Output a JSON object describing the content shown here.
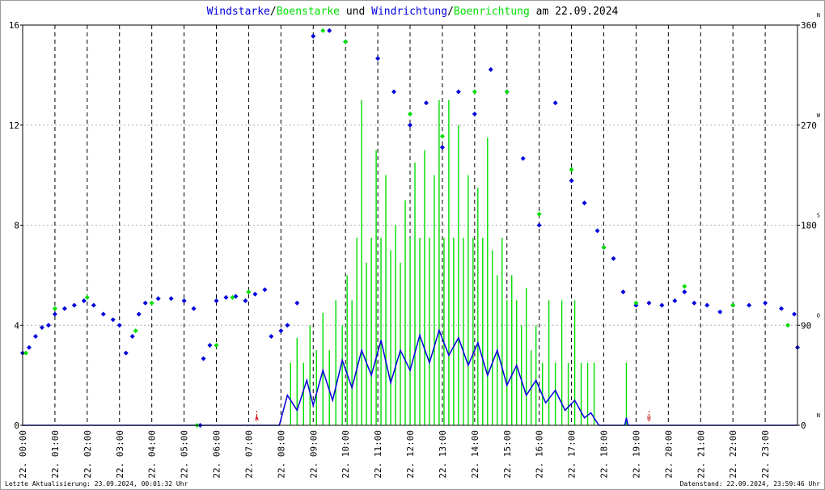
{
  "title": {
    "part1": "Windstarke",
    "sep1": "/",
    "part2": "Boenstarke",
    "part3": " und ",
    "part4": "Windrichtung",
    "sep2": "/",
    "part5": "Boenrichtung",
    "part6": " am 22.09.2024"
  },
  "footer": {
    "left": "Letzte Aktualisierung: 23.09.2024, 00:01:32 Uhr",
    "right": "Datenstand: 22.09.2024, 23:59:46 Uhr"
  },
  "sun_marks": {
    "sunrise": "A",
    "sunset": "U",
    "sunrise_hour": 7.25,
    "sunset_hour": 19.4
  },
  "colors": {
    "wind": "#0000dd",
    "gust": "#00dd00",
    "frame": "#9a9a9a",
    "sun": "#cc0000"
  },
  "chart_data": {
    "type": "scatter",
    "title": "Windstarke/Boenstarke und Windrichtung/Boenrichtung am 22.09.2024",
    "x_ticks": [
      "22. 00:00",
      "22. 01:00",
      "22. 02:00",
      "22. 03:00",
      "22. 04:00",
      "22. 05:00",
      "22. 06:00",
      "22. 07:00",
      "22. 08:00",
      "22. 09:00",
      "22. 10:00",
      "22. 11:00",
      "22. 12:00",
      "22. 13:00",
      "22. 14:00",
      "22. 15:00",
      "22. 16:00",
      "22. 17:00",
      "22. 18:00",
      "22. 19:00",
      "22. 20:00",
      "22. 21:00",
      "22. 22:00",
      "22. 23:00"
    ],
    "xlim": [
      0,
      24
    ],
    "y_left": {
      "range": [
        0,
        16
      ],
      "ticks": [
        "0",
        "4",
        "8",
        "12",
        "16"
      ]
    },
    "y_right": {
      "range": [
        0,
        360
      ],
      "ticks": [
        "0",
        "90",
        "180",
        "270",
        "360"
      ],
      "compass": [
        "N",
        "O",
        "S",
        "W",
        "N"
      ]
    },
    "grid": true,
    "series": [
      {
        "kind": "wind_speed_line",
        "color": "#0000dd",
        "points": [
          [
            0.0,
            0
          ],
          [
            7.95,
            0
          ],
          [
            8.2,
            1.2
          ],
          [
            8.5,
            0.6
          ],
          [
            8.8,
            1.8
          ],
          [
            9.0,
            0.8
          ],
          [
            9.3,
            2.2
          ],
          [
            9.6,
            1.0
          ],
          [
            9.9,
            2.6
          ],
          [
            10.2,
            1.5
          ],
          [
            10.5,
            3.0
          ],
          [
            10.8,
            2.0
          ],
          [
            11.1,
            3.4
          ],
          [
            11.4,
            1.7
          ],
          [
            11.7,
            3.0
          ],
          [
            12.0,
            2.2
          ],
          [
            12.3,
            3.6
          ],
          [
            12.6,
            2.5
          ],
          [
            12.9,
            3.8
          ],
          [
            13.2,
            2.8
          ],
          [
            13.5,
            3.5
          ],
          [
            13.8,
            2.4
          ],
          [
            14.1,
            3.3
          ],
          [
            14.4,
            2.0
          ],
          [
            14.7,
            3.0
          ],
          [
            15.0,
            1.6
          ],
          [
            15.3,
            2.4
          ],
          [
            15.6,
            1.2
          ],
          [
            15.9,
            1.8
          ],
          [
            16.2,
            0.9
          ],
          [
            16.5,
            1.4
          ],
          [
            16.8,
            0.6
          ],
          [
            17.1,
            1.0
          ],
          [
            17.4,
            0.3
          ],
          [
            17.6,
            0.5
          ],
          [
            17.85,
            0
          ],
          [
            18.65,
            0
          ],
          [
            18.7,
            0.3
          ],
          [
            18.75,
            0
          ],
          [
            24.0,
            0
          ]
        ]
      },
      {
        "kind": "gust_speed_bars",
        "color": "#00dd00",
        "points": [
          [
            8.3,
            2.5
          ],
          [
            8.5,
            3.5
          ],
          [
            8.7,
            2.5
          ],
          [
            8.9,
            4.0
          ],
          [
            9.1,
            3.0
          ],
          [
            9.3,
            4.5
          ],
          [
            9.5,
            3.0
          ],
          [
            9.7,
            5.0
          ],
          [
            9.9,
            4.0
          ],
          [
            10.05,
            6.0
          ],
          [
            10.2,
            5.0
          ],
          [
            10.35,
            7.5
          ],
          [
            10.5,
            13.0
          ],
          [
            10.65,
            6.5
          ],
          [
            10.8,
            7.5
          ],
          [
            10.95,
            11.0
          ],
          [
            11.1,
            7.5
          ],
          [
            11.25,
            10.0
          ],
          [
            11.4,
            7.0
          ],
          [
            11.55,
            8.0
          ],
          [
            11.7,
            6.5
          ],
          [
            11.85,
            9.0
          ],
          [
            12.0,
            7.5
          ],
          [
            12.15,
            10.5
          ],
          [
            12.3,
            7.5
          ],
          [
            12.45,
            11.0
          ],
          [
            12.6,
            7.5
          ],
          [
            12.75,
            10.0
          ],
          [
            12.9,
            13.0
          ],
          [
            13.05,
            7.5
          ],
          [
            13.2,
            13.0
          ],
          [
            13.35,
            7.5
          ],
          [
            13.5,
            12.0
          ],
          [
            13.65,
            7.5
          ],
          [
            13.8,
            10.0
          ],
          [
            13.95,
            7.5
          ],
          [
            14.1,
            9.5
          ],
          [
            14.25,
            7.5
          ],
          [
            14.4,
            11.5
          ],
          [
            14.55,
            7.0
          ],
          [
            14.7,
            6.0
          ],
          [
            14.85,
            7.5
          ],
          [
            15.0,
            5.0
          ],
          [
            15.15,
            6.0
          ],
          [
            15.3,
            5.0
          ],
          [
            15.45,
            4.0
          ],
          [
            15.6,
            5.5
          ],
          [
            15.75,
            3.0
          ],
          [
            15.9,
            4.0
          ],
          [
            16.1,
            2.5
          ],
          [
            16.3,
            5.0
          ],
          [
            16.5,
            2.5
          ],
          [
            16.7,
            5.0
          ],
          [
            16.9,
            2.5
          ],
          [
            17.1,
            5.0
          ],
          [
            17.3,
            2.5
          ],
          [
            17.5,
            2.5
          ],
          [
            17.7,
            2.5
          ],
          [
            18.7,
            2.5
          ]
        ]
      },
      {
        "kind": "wind_direction_points",
        "color": "#0000dd",
        "direction_deg_samples": [
          [
            0.0,
            65
          ],
          [
            0.2,
            70
          ],
          [
            0.4,
            80
          ],
          [
            0.6,
            88
          ],
          [
            0.8,
            90
          ],
          [
            1.0,
            100
          ],
          [
            1.3,
            105
          ],
          [
            1.6,
            108
          ],
          [
            1.9,
            112
          ],
          [
            2.2,
            108
          ],
          [
            2.5,
            100
          ],
          [
            2.8,
            95
          ],
          [
            3.0,
            90
          ],
          [
            3.2,
            65
          ],
          [
            3.4,
            80
          ],
          [
            3.6,
            100
          ],
          [
            3.8,
            110
          ],
          [
            4.2,
            114
          ],
          [
            4.6,
            114
          ],
          [
            5.0,
            112
          ],
          [
            5.3,
            105
          ],
          [
            5.5,
            0
          ],
          [
            5.6,
            60
          ],
          [
            5.8,
            72
          ],
          [
            6.0,
            112
          ],
          [
            6.3,
            115
          ],
          [
            6.6,
            116
          ],
          [
            6.9,
            112
          ],
          [
            7.2,
            118
          ],
          [
            7.5,
            122
          ],
          [
            7.7,
            80
          ],
          [
            8.0,
            85
          ],
          [
            8.2,
            90
          ],
          [
            8.5,
            110
          ],
          [
            9.0,
            350
          ],
          [
            9.5,
            355
          ],
          [
            10.0,
            345
          ],
          [
            11.0,
            330
          ],
          [
            11.5,
            300
          ],
          [
            12.0,
            270
          ],
          [
            12.5,
            290
          ],
          [
            13.0,
            250
          ],
          [
            13.5,
            300
          ],
          [
            14.0,
            280
          ],
          [
            14.5,
            320
          ],
          [
            15.0,
            300
          ],
          [
            15.5,
            240
          ],
          [
            16.0,
            180
          ],
          [
            16.5,
            290
          ],
          [
            17.0,
            220
          ],
          [
            17.4,
            200
          ],
          [
            17.8,
            175
          ],
          [
            18.0,
            160
          ],
          [
            18.3,
            150
          ],
          [
            18.6,
            120
          ],
          [
            19.0,
            108
          ],
          [
            19.4,
            110
          ],
          [
            19.8,
            108
          ],
          [
            20.2,
            112
          ],
          [
            20.5,
            120
          ],
          [
            20.8,
            110
          ],
          [
            21.2,
            108
          ],
          [
            21.6,
            102
          ],
          [
            22.0,
            108
          ],
          [
            22.5,
            108
          ],
          [
            23.0,
            110
          ],
          [
            23.5,
            105
          ],
          [
            23.9,
            100
          ],
          [
            24.0,
            70
          ]
        ]
      },
      {
        "kind": "gust_direction_points",
        "color": "#00dd00",
        "direction_deg_samples": [
          [
            0.1,
            65
          ],
          [
            1.0,
            105
          ],
          [
            2.0,
            115
          ],
          [
            3.5,
            85
          ],
          [
            4.0,
            110
          ],
          [
            5.4,
            0
          ],
          [
            6.0,
            72
          ],
          [
            6.5,
            115
          ],
          [
            7.0,
            120
          ],
          [
            9.3,
            355
          ],
          [
            10.0,
            345
          ],
          [
            12.0,
            280
          ],
          [
            13.0,
            260
          ],
          [
            14.0,
            300
          ],
          [
            15.0,
            300
          ],
          [
            16.0,
            190
          ],
          [
            17.0,
            230
          ],
          [
            18.0,
            160
          ],
          [
            19.0,
            110
          ],
          [
            20.5,
            125
          ],
          [
            22.0,
            108
          ],
          [
            23.7,
            90
          ]
        ]
      }
    ]
  }
}
